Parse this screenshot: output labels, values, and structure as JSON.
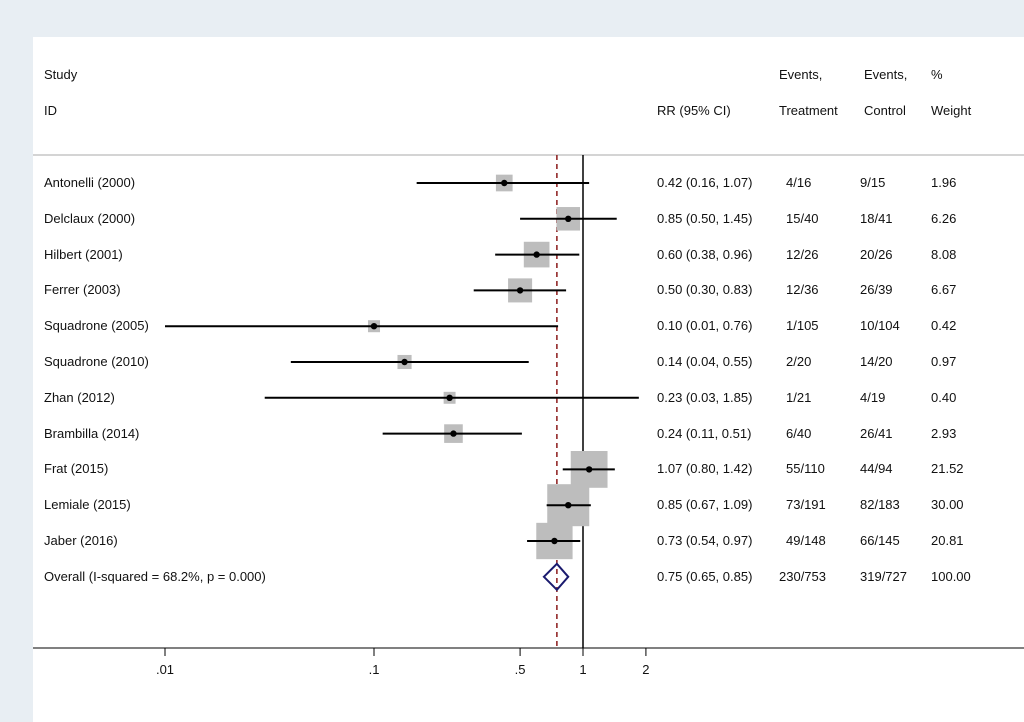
{
  "headers": {
    "study_1": "Study",
    "study_2": "ID",
    "rr": "RR (95% CI)",
    "events_t_1": "Events,",
    "events_t_2": "Treatment",
    "events_c_1": "Events,",
    "events_c_2": "Control",
    "weight_1": "%",
    "weight_2": "Weight"
  },
  "chart_data": {
    "type": "forest",
    "x_scale": "log",
    "x_ticks": [
      0.01,
      0.1,
      0.5,
      1,
      2
    ],
    "x_tick_labels": [
      ".01",
      ".1",
      ".5",
      "1",
      "2"
    ],
    "reference_line": 1,
    "pooled_line": 0.75,
    "studies": [
      {
        "name": "Antonelli (2000)",
        "rr": 0.42,
        "lo": 0.16,
        "hi": 1.07,
        "rr_text": "0.42 (0.16, 1.07)",
        "events_treatment": "4/16",
        "events_control": "9/15",
        "weight": 1.96,
        "weight_text": "1.96"
      },
      {
        "name": "Delclaux (2000)",
        "rr": 0.85,
        "lo": 0.5,
        "hi": 1.45,
        "rr_text": "0.85 (0.50, 1.45)",
        "events_treatment": "15/40",
        "events_control": "18/41",
        "weight": 6.26,
        "weight_text": "6.26"
      },
      {
        "name": "Hilbert (2001)",
        "rr": 0.6,
        "lo": 0.38,
        "hi": 0.96,
        "rr_text": "0.60 (0.38, 0.96)",
        "events_treatment": "12/26",
        "events_control": "20/26",
        "weight": 8.08,
        "weight_text": "8.08"
      },
      {
        "name": "Ferrer (2003)",
        "rr": 0.5,
        "lo": 0.3,
        "hi": 0.83,
        "rr_text": "0.50 (0.30, 0.83)",
        "events_treatment": "12/36",
        "events_control": "26/39",
        "weight": 6.67,
        "weight_text": "6.67"
      },
      {
        "name": "Squadrone (2005)",
        "rr": 0.1,
        "lo": 0.01,
        "hi": 0.76,
        "rr_text": "0.10 (0.01, 0.76)",
        "events_treatment": "1/105",
        "events_control": "10/104",
        "weight": 0.42,
        "weight_text": "0.42"
      },
      {
        "name": "Squadrone (2010)",
        "rr": 0.14,
        "lo": 0.04,
        "hi": 0.55,
        "rr_text": "0.14 (0.04, 0.55)",
        "events_treatment": "2/20",
        "events_control": "14/20",
        "weight": 0.97,
        "weight_text": "0.97"
      },
      {
        "name": "Zhan (2012)",
        "rr": 0.23,
        "lo": 0.03,
        "hi": 1.85,
        "rr_text": "0.23 (0.03, 1.85)",
        "events_treatment": "1/21",
        "events_control": "4/19",
        "weight": 0.4,
        "weight_text": "0.40"
      },
      {
        "name": "Brambilla (2014)",
        "rr": 0.24,
        "lo": 0.11,
        "hi": 0.51,
        "rr_text": "0.24 (0.11, 0.51)",
        "events_treatment": "6/40",
        "events_control": "26/41",
        "weight": 2.93,
        "weight_text": "2.93"
      },
      {
        "name": "Frat (2015)",
        "rr": 1.07,
        "lo": 0.8,
        "hi": 1.42,
        "rr_text": "1.07 (0.80, 1.42)",
        "events_treatment": "55/110",
        "events_control": "44/94",
        "weight": 21.52,
        "weight_text": "21.52"
      },
      {
        "name": "Lemiale (2015)",
        "rr": 0.85,
        "lo": 0.67,
        "hi": 1.09,
        "rr_text": "0.85 (0.67, 1.09)",
        "events_treatment": "73/191",
        "events_control": "82/183",
        "weight": 30.0,
        "weight_text": "30.00"
      },
      {
        "name": "Jaber (2016)",
        "rr": 0.73,
        "lo": 0.54,
        "hi": 0.97,
        "rr_text": "0.73 (0.54, 0.97)",
        "events_treatment": "49/148",
        "events_control": "66/145",
        "weight": 20.81,
        "weight_text": "20.81"
      }
    ],
    "overall": {
      "name": "Overall  (I-squared = 68.2%, p = 0.000)",
      "rr": 0.75,
      "lo": 0.65,
      "hi": 0.85,
      "rr_text": "0.75 (0.65, 0.85)",
      "events_treatment": "230/753",
      "events_control": "319/727",
      "weight_text": "100.00"
    },
    "colors": {
      "box": "#bdbdbd",
      "ci_line": "#000000",
      "dashed_line": "#8b1a1a",
      "diamond": "#1a1a6e"
    }
  }
}
